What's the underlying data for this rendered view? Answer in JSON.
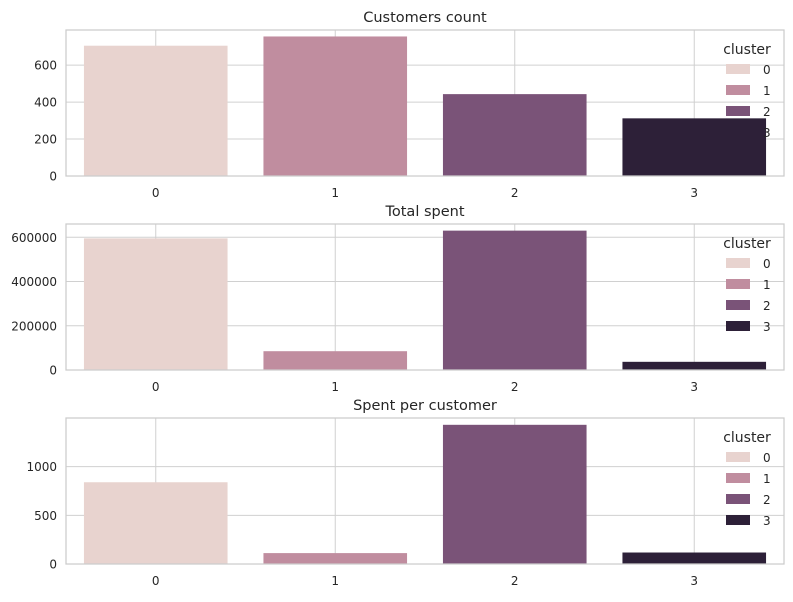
{
  "chart_data": [
    {
      "type": "bar",
      "title": "Customers count",
      "xlabel": "",
      "ylabel": "",
      "categories": [
        "0",
        "1",
        "2",
        "3"
      ],
      "values": [
        705,
        755,
        443,
        312
      ],
      "ylim": [
        0,
        790
      ],
      "yticks": [
        0,
        200,
        400,
        600
      ],
      "legend": {
        "title": "cluster",
        "position": "top-right",
        "entries": [
          "0",
          "1",
          "2",
          "3"
        ]
      },
      "colors": [
        "#e8d3cf",
        "#c08d9f",
        "#7a5378",
        "#2d2038"
      ],
      "grid": true
    },
    {
      "type": "bar",
      "title": "Total spent",
      "xlabel": "",
      "ylabel": "",
      "categories": [
        "0",
        "1",
        "2",
        "3"
      ],
      "values": [
        595000,
        85000,
        630000,
        37000
      ],
      "ylim": [
        0,
        660000
      ],
      "yticks": [
        0,
        200000,
        400000,
        600000
      ],
      "legend": {
        "title": "cluster",
        "position": "top-right",
        "entries": [
          "0",
          "1",
          "2",
          "3"
        ]
      },
      "colors": [
        "#e8d3cf",
        "#c08d9f",
        "#7a5378",
        "#2d2038"
      ],
      "grid": true
    },
    {
      "type": "bar",
      "title": "Spent per customer",
      "xlabel": "",
      "ylabel": "",
      "categories": [
        "0",
        "1",
        "2",
        "3"
      ],
      "values": [
        840,
        112,
        1430,
        118
      ],
      "ylim": [
        0,
        1500
      ],
      "yticks": [
        0,
        500,
        1000
      ],
      "legend": {
        "title": "cluster",
        "position": "top-right",
        "entries": [
          "0",
          "1",
          "2",
          "3"
        ]
      },
      "colors": [
        "#e8d3cf",
        "#c08d9f",
        "#7a5378",
        "#2d2038"
      ],
      "grid": true
    }
  ]
}
